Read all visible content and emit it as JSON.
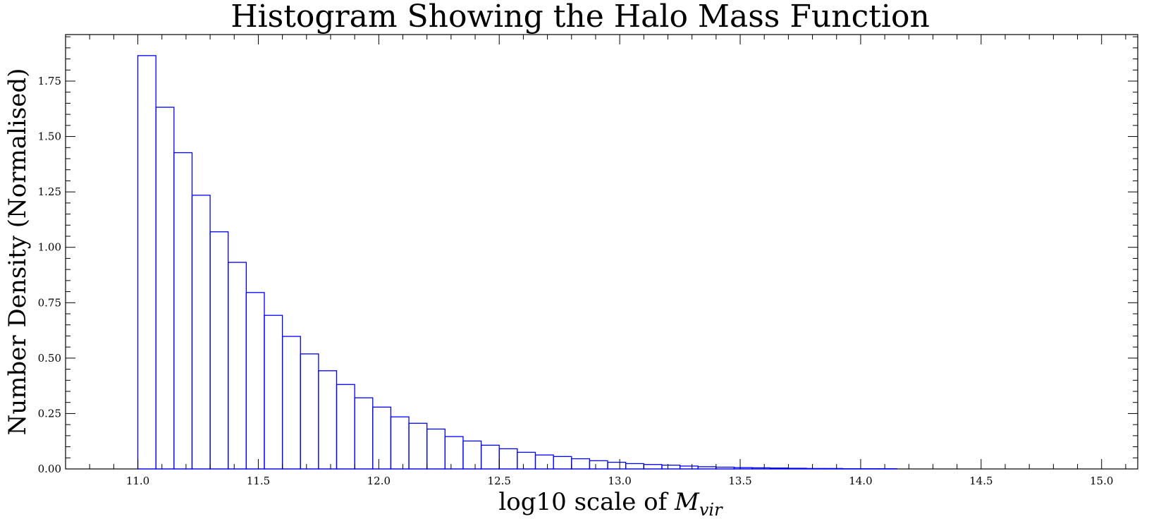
{
  "chart_data": {
    "type": "bar",
    "title": "Histogram Showing the Halo Mass Function",
    "xlabel_main": "log10 scale of ",
    "xlabel_symbol": "M",
    "xlabel_subscript": "vir",
    "ylabel": "Number Density (Normalised)",
    "xlim": [
      10.7,
      15.15
    ],
    "ylim": [
      0,
      1.96
    ],
    "grid": false,
    "bar_color": "#0000ff",
    "bin_start": 11.0,
    "bin_width": 0.075,
    "values": [
      1.865,
      1.632,
      1.427,
      1.235,
      1.07,
      0.932,
      0.796,
      0.693,
      0.598,
      0.519,
      0.443,
      0.381,
      0.321,
      0.279,
      0.235,
      0.206,
      0.18,
      0.146,
      0.126,
      0.107,
      0.091,
      0.075,
      0.063,
      0.056,
      0.046,
      0.037,
      0.03,
      0.024,
      0.02,
      0.017,
      0.013,
      0.01,
      0.008,
      0.006,
      0.005,
      0.004,
      0.003,
      0.002,
      0.002,
      0.001,
      0.001,
      0.001
    ],
    "x_ticks": [
      {
        "value": 11.0,
        "label": "11.0"
      },
      {
        "value": 11.5,
        "label": "11.5"
      },
      {
        "value": 12.0,
        "label": "12.0"
      },
      {
        "value": 12.5,
        "label": "12.5"
      },
      {
        "value": 13.0,
        "label": "13.0"
      },
      {
        "value": 13.5,
        "label": "13.5"
      },
      {
        "value": 14.0,
        "label": "14.0"
      },
      {
        "value": 14.5,
        "label": "14.5"
      },
      {
        "value": 15.0,
        "label": "15.0"
      }
    ],
    "x_minor_step": 0.1,
    "y_ticks": [
      {
        "value": 0.0,
        "label": "0.00"
      },
      {
        "value": 0.25,
        "label": "0.25"
      },
      {
        "value": 0.5,
        "label": "0.50"
      },
      {
        "value": 0.75,
        "label": "0.75"
      },
      {
        "value": 1.0,
        "label": "1.00"
      },
      {
        "value": 1.25,
        "label": "1.25"
      },
      {
        "value": 1.5,
        "label": "1.50"
      },
      {
        "value": 1.75,
        "label": "1.75"
      }
    ],
    "y_minor_step": 0.05
  }
}
